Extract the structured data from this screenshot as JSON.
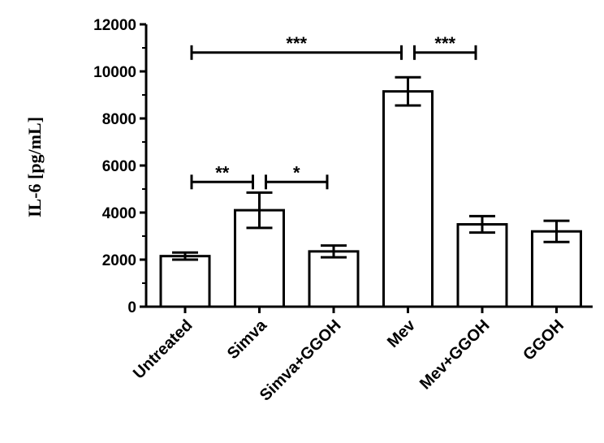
{
  "chart_data": {
    "type": "bar",
    "title": "",
    "xlabel": "",
    "ylabel": "IL-6 [pg/mL]",
    "ylim": [
      0,
      12000
    ],
    "yticks": [
      "0",
      "2000",
      "4000",
      "6000",
      "8000",
      "10000",
      "12000"
    ],
    "grid": false,
    "categories": [
      "Untreated",
      "Simva",
      "Simva+GGOH",
      "Mev",
      "Mev+GGOH",
      "GGOH"
    ],
    "values": [
      2150,
      4100,
      2350,
      9150,
      3500,
      3200
    ],
    "error": [
      150,
      750,
      250,
      600,
      350,
      450
    ],
    "significance": [
      {
        "from": 0,
        "to": 3,
        "label": "***",
        "y": 10800
      },
      {
        "from": 3,
        "to": 4,
        "label": "***",
        "y": 10800
      },
      {
        "from": 0,
        "to": 1,
        "label": "**",
        "y": 5300
      },
      {
        "from": 1,
        "to": 2,
        "label": "*",
        "y": 5300
      }
    ],
    "colors": {
      "bar_fill": "#ffffff",
      "stroke": "#000000"
    }
  }
}
